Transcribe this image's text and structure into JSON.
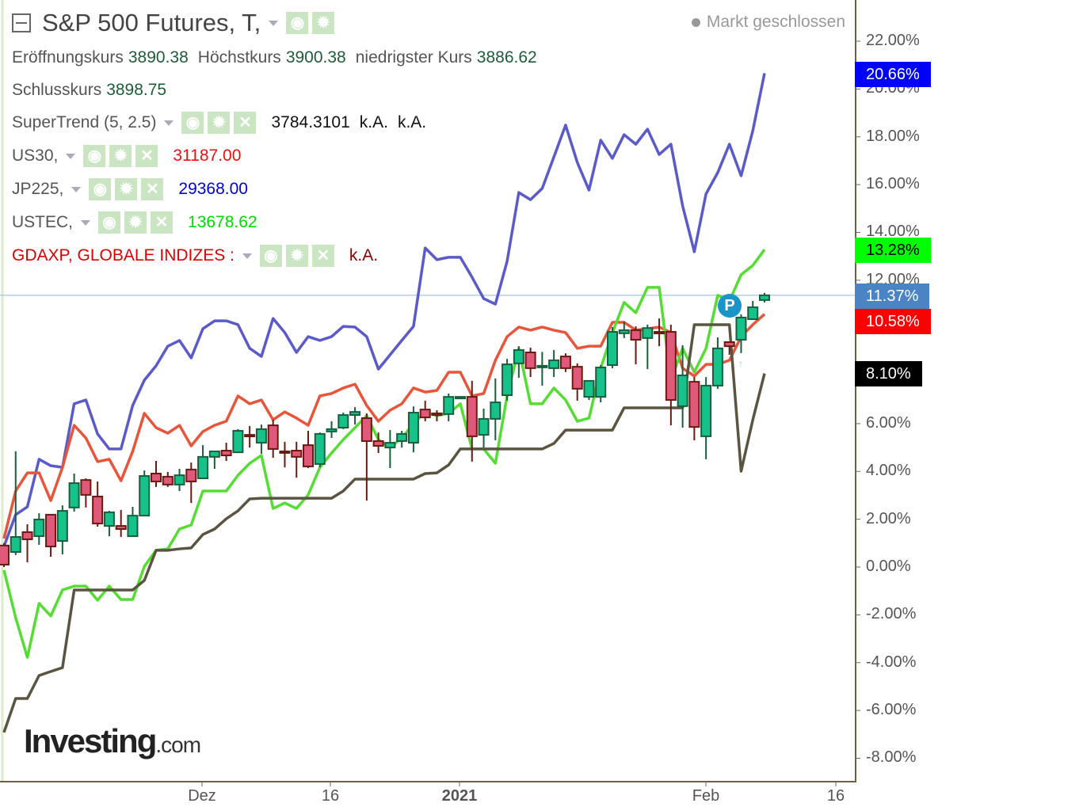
{
  "header": {
    "title": "S&P 500 Futures, T,",
    "status": "Markt geschlossen",
    "ohlc": {
      "open_label": "Eröffnungskurs",
      "open": "3890.38",
      "high_label": "Höchstkurs",
      "high": "3900.38",
      "low_label": "niedrigster Kurs",
      "low": "3886.62",
      "close_label": "Schlusskurs",
      "close": "3898.75"
    },
    "indicators": [
      {
        "name": "SuperTrend (5, 2.5)",
        "values": [
          "3784.3101",
          "k.A.",
          "k.A."
        ],
        "color": "#111111"
      },
      {
        "name": "US30,",
        "values": [
          "31187.00"
        ],
        "color": "#ee1111"
      },
      {
        "name": "JP225,",
        "values": [
          "29368.00"
        ],
        "color": "#0000dd"
      },
      {
        "name": "USTEC,",
        "values": [
          "13678.62"
        ],
        "color": "#00dd00"
      },
      {
        "name": "GDAXP, GLOBALE INDIZES :",
        "values": [
          "k.A."
        ],
        "color": "#8b0000",
        "name_color": "#dd0000"
      }
    ],
    "icons": [
      "eye-icon",
      "gear-icon",
      "close-icon"
    ]
  },
  "logo": {
    "brand": "Investing",
    "suffix": ".com"
  },
  "chart_data": {
    "type": "candlestick+line",
    "ylabel": "",
    "ylim": [
      -9,
      23.7
    ],
    "y_ticks": [
      "22.00%",
      "20.00%",
      "18.00%",
      "16.00%",
      "14.00%",
      "12.00%",
      "6.00%",
      "4.00%",
      "2.00%",
      "0.00%",
      "-2.00%",
      "-4.00%",
      "-6.00%",
      "-8.00%"
    ],
    "y_tick_values": [
      22,
      20,
      18,
      16,
      14,
      12,
      6,
      4,
      2,
      0,
      -2,
      -4,
      -6,
      -8
    ],
    "x_ticks": [
      {
        "label": "Dez",
        "bold": false,
        "index": 17
      },
      {
        "label": "16",
        "bold": false,
        "index": 28
      },
      {
        "label": "2021",
        "bold": true,
        "index": 39
      },
      {
        "label": "Feb",
        "bold": false,
        "index": 60
      },
      {
        "label": "16",
        "bold": false,
        "index": 71
      }
    ],
    "current_price_line": 11.37,
    "last_value_tags": [
      {
        "label": "20.66%",
        "value": 20.66,
        "bg": "#0000ff",
        "fg": "#ffffff"
      },
      {
        "label": "13.28%",
        "value": 13.28,
        "bg": "#00ff00",
        "fg": "#000000"
      },
      {
        "label": "11.37%",
        "value": 11.37,
        "bg": "#4a84c4",
        "fg": "#ffffff"
      },
      {
        "label": "10.58%",
        "value": 10.58,
        "bg": "#ff0000",
        "fg": "#ffffff"
      },
      {
        "label": "8.10%",
        "value": 8.1,
        "bg": "#000000",
        "fg": "#ffffff"
      }
    ],
    "candles": [
      [
        0.9,
        0.1,
        1.0,
        0.0
      ],
      [
        0.63,
        1.26,
        4.84,
        0.5
      ],
      [
        1.46,
        1.16,
        1.79,
        0.2
      ],
      [
        1.29,
        1.99,
        2.25,
        0.93
      ],
      [
        2.19,
        0.86,
        2.19,
        0.43
      ],
      [
        1.09,
        2.35,
        2.58,
        0.53
      ],
      [
        2.49,
        3.51,
        3.91,
        2.32
      ],
      [
        3.64,
        3.02,
        3.71,
        2.49
      ],
      [
        2.95,
        1.82,
        3.58,
        1.69
      ],
      [
        1.72,
        2.29,
        2.35,
        1.29
      ],
      [
        1.72,
        1.59,
        2.39,
        1.26
      ],
      [
        1.29,
        2.15,
        2.52,
        1.29
      ],
      [
        2.15,
        3.81,
        4.04,
        2.15
      ],
      [
        3.91,
        3.58,
        4.44,
        3.35
      ],
      [
        3.78,
        3.45,
        3.98,
        3.35
      ],
      [
        3.45,
        3.84,
        4.11,
        3.18
      ],
      [
        4.08,
        3.58,
        4.37,
        2.68
      ],
      [
        3.71,
        4.61,
        5.1,
        3.68
      ],
      [
        4.61,
        4.84,
        4.84,
        4.11
      ],
      [
        4.87,
        4.67,
        5.2,
        4.44
      ],
      [
        4.8,
        5.7,
        5.77,
        4.8
      ],
      [
        5.53,
        5.47,
        5.9,
        5.0
      ],
      [
        5.2,
        5.77,
        5.96,
        4.74
      ],
      [
        5.93,
        4.94,
        6.16,
        4.57
      ],
      [
        4.84,
        4.8,
        5.24,
        4.17
      ],
      [
        4.87,
        4.61,
        5.24,
        3.74
      ],
      [
        5.1,
        4.21,
        5.7,
        4.14
      ],
      [
        4.31,
        5.57,
        5.63,
        4.17
      ],
      [
        5.67,
        5.77,
        6.1,
        5.4
      ],
      [
        5.83,
        6.36,
        6.46,
        5.77
      ],
      [
        6.36,
        6.49,
        6.69,
        5.96
      ],
      [
        6.23,
        5.27,
        6.43,
        2.78
      ],
      [
        5.27,
        5.07,
        5.63,
        4.77
      ],
      [
        5.0,
        5.2,
        5.73,
        4.14
      ],
      [
        5.27,
        5.57,
        5.7,
        5.0
      ],
      [
        5.2,
        6.46,
        6.72,
        4.8
      ],
      [
        6.59,
        6.26,
        6.96,
        6.1
      ],
      [
        6.43,
        6.36,
        6.56,
        6.1
      ],
      [
        6.4,
        7.12,
        7.26,
        6.1
      ],
      [
        7.12,
        7.12,
        7.12,
        7.12
      ],
      [
        7.12,
        5.47,
        7.79,
        4.41
      ],
      [
        5.53,
        6.2,
        6.63,
        5.0
      ],
      [
        6.2,
        6.89,
        7.89,
        5.3
      ],
      [
        7.19,
        8.48,
        8.71,
        6.96
      ],
      [
        8.52,
        9.08,
        9.24,
        7.92
      ],
      [
        8.98,
        8.32,
        9.18,
        7.95
      ],
      [
        8.38,
        8.42,
        9.0,
        7.59
      ],
      [
        8.32,
        8.65,
        9.08,
        7.95
      ],
      [
        8.81,
        8.32,
        8.94,
        8.16
      ],
      [
        8.38,
        7.46,
        8.52,
        6.96
      ],
      [
        7.12,
        7.79,
        7.79,
        6.99
      ],
      [
        7.12,
        8.35,
        8.45,
        6.89
      ],
      [
        8.45,
        9.84,
        10.04,
        8.32
      ],
      [
        9.78,
        9.91,
        10.27,
        9.58
      ],
      [
        9.91,
        9.51,
        10.07,
        8.48
      ],
      [
        9.58,
        10.0,
        10.14,
        8.28
      ],
      [
        9.84,
        9.78,
        10.4,
        9.24
      ],
      [
        9.84,
        6.99,
        10.14,
        5.93
      ],
      [
        6.73,
        8.02,
        9.28,
        5.83
      ],
      [
        7.75,
        5.86,
        7.95,
        5.3
      ],
      [
        5.47,
        7.59,
        7.95,
        4.51
      ],
      [
        7.59,
        9.15,
        9.61,
        7.46
      ],
      [
        9.41,
        9.24,
        9.41,
        8.88
      ],
      [
        9.51,
        10.44,
        10.57,
        8.95
      ],
      [
        10.37,
        10.87,
        11.13,
        10.37
      ],
      [
        11.17,
        11.37,
        11.47,
        11.07
      ]
    ],
    "series": [
      {
        "name": "JP225",
        "color": "#5a5acb",
        "values": [
          0.86,
          2.19,
          2.52,
          4.51,
          4.24,
          4.17,
          6.83,
          6.99,
          5.57,
          4.94,
          4.94,
          6.76,
          7.82,
          8.42,
          9.24,
          9.48,
          8.75,
          9.97,
          10.3,
          10.3,
          10.14,
          9.15,
          8.81,
          10.4,
          9.81,
          8.98,
          9.64,
          9.48,
          9.64,
          10.07,
          10.04,
          9.64,
          8.28,
          8.88,
          9.48,
          10.07,
          13.35,
          12.86,
          12.96,
          12.96,
          12.13,
          11.23,
          11.0,
          12.79,
          15.67,
          15.37,
          15.84,
          17.16,
          18.49,
          16.93,
          15.77,
          17.86,
          17.1,
          18.09,
          17.69,
          18.32,
          17.26,
          17.69,
          15.11,
          13.19,
          15.61,
          16.5,
          17.69,
          16.37,
          18.26,
          20.66
        ]
      },
      {
        "name": "US30",
        "color": "#e8553a",
        "values": [
          1.19,
          3.18,
          3.94,
          3.94,
          2.78,
          4.17,
          5.93,
          5.4,
          4.41,
          4.51,
          3.61,
          4.84,
          6.43,
          5.83,
          5.6,
          5.93,
          5.07,
          5.67,
          5.93,
          6.1,
          7.16,
          6.83,
          6.99,
          6.16,
          6.49,
          6.23,
          5.93,
          7.16,
          7.26,
          7.49,
          7.65,
          6.76,
          6.1,
          6.56,
          6.83,
          7.49,
          7.32,
          7.39,
          8.15,
          8.15,
          7.16,
          7.26,
          8.65,
          9.64,
          10.04,
          9.91,
          10.04,
          9.91,
          9.81,
          9.15,
          9.24,
          9.24,
          10.24,
          10.24,
          9.91,
          9.97,
          10.04,
          9.81,
          8.32,
          7.99,
          8.48,
          8.48,
          8.65,
          9.64,
          10.14,
          10.58
        ]
      },
      {
        "name": "USTEC",
        "color": "#55dd33",
        "values": [
          -0.13,
          -2.12,
          -3.78,
          -1.52,
          -2.05,
          -0.96,
          -0.8,
          -0.8,
          -1.39,
          -0.8,
          -1.36,
          -1.36,
          0.03,
          0.7,
          0.76,
          1.59,
          1.76,
          3.18,
          3.18,
          3.18,
          3.84,
          4.34,
          4.67,
          2.45,
          2.68,
          2.45,
          3.02,
          4.17,
          4.77,
          5.33,
          5.83,
          6.33,
          5.33,
          5.0,
          5.4,
          6.0,
          6.49,
          6.33,
          6.43,
          6.83,
          4.94,
          4.94,
          4.34,
          7.16,
          9.15,
          6.83,
          6.83,
          7.49,
          6.99,
          6.1,
          6.23,
          8.32,
          9.81,
          11.07,
          10.64,
          11.7,
          11.7,
          7.82,
          9.15,
          8.15,
          9.15,
          11.37,
          11.13,
          12.23,
          12.62,
          13.28
        ]
      },
      {
        "name": "GDAXP",
        "color": "#5a5440",
        "values": [
          -6.92,
          -5.5,
          -5.5,
          -4.54,
          -4.37,
          -4.21,
          -0.96,
          -0.96,
          -0.96,
          -0.96,
          -0.96,
          -0.96,
          -0.56,
          0.7,
          0.7,
          0.76,
          0.8,
          1.36,
          1.59,
          2.02,
          2.35,
          2.85,
          2.88,
          2.88,
          2.88,
          2.88,
          2.88,
          2.88,
          2.88,
          3.18,
          3.68,
          3.68,
          3.68,
          3.68,
          3.68,
          3.68,
          3.91,
          3.94,
          4.27,
          4.94,
          4.94,
          4.94,
          4.94,
          4.94,
          4.94,
          4.94,
          4.94,
          5.17,
          5.73,
          5.73,
          5.73,
          5.73,
          5.73,
          6.66,
          6.66,
          6.66,
          6.66,
          6.66,
          6.66,
          10.14,
          10.14,
          10.14,
          10.14,
          4.01,
          6.16,
          8.1
        ]
      }
    ],
    "markers": [
      {
        "label": "P",
        "index": 62,
        "color": "#1b95c8"
      }
    ],
    "colors": {
      "up": "#14c28a",
      "up_border": "#1a5e3f",
      "down": "#e0587a",
      "down_border": "#6b1a10",
      "price_line": "#8fb4e8"
    }
  }
}
